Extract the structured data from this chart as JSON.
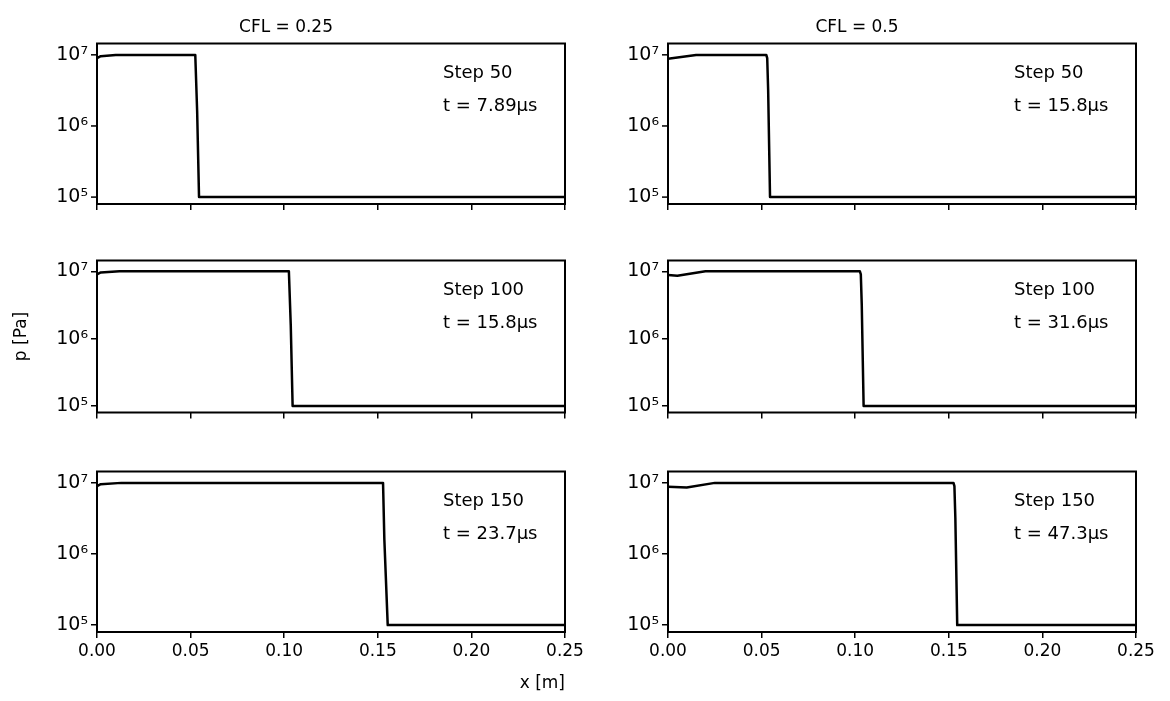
{
  "chart_data": [
    {
      "type": "line",
      "title": "CFL = 0.25",
      "x": [
        0,
        0.002,
        0.01,
        0.0525,
        0.0535,
        0.0545,
        0.25
      ],
      "values": [
        9000000,
        9600000,
        10000000,
        10000000,
        1600000,
        100000,
        100000
      ],
      "color": "#000000",
      "log": "y",
      "xlim": [
        0,
        0.25
      ],
      "ylim": [
        80000,
        14500000
      ],
      "xticks": [
        0,
        0.05,
        0.1,
        0.15,
        0.2,
        0.25
      ],
      "yticks": [
        {
          "value": 100000,
          "label": "10⁵"
        },
        {
          "value": 1000000,
          "label": "10⁶"
        },
        {
          "value": 10000000,
          "label": "10⁷"
        }
      ],
      "tick_labels": "y",
      "annotations": [
        "Step 50",
        "t = 7.89μs"
      ]
    },
    {
      "type": "line",
      "title": "CFL = 0.5",
      "x": [
        0,
        0.015,
        0.0525,
        0.053,
        0.0535,
        0.0545,
        0.25
      ],
      "values": [
        8800000,
        10000000,
        10000000,
        9000000,
        3200000,
        100000,
        100000
      ],
      "color": "#000000",
      "log": "y",
      "xlim": [
        0,
        0.25
      ],
      "ylim": [
        80000,
        14500000
      ],
      "xticks": [
        0,
        0.05,
        0.1,
        0.15,
        0.2,
        0.25
      ],
      "yticks": [
        {
          "value": 100000,
          "label": "10⁵"
        },
        {
          "value": 1000000,
          "label": "10⁶"
        },
        {
          "value": 10000000,
          "label": "10⁷"
        }
      ],
      "tick_labels": "y",
      "annotations": [
        "Step 50",
        "t = 15.8μs"
      ]
    },
    {
      "type": "line",
      "ylabel": "p [Pa]",
      "x": [
        0,
        0.002,
        0.012,
        0.1025,
        0.1035,
        0.1045,
        0.25
      ],
      "values": [
        9000000,
        9600000,
        10000000,
        10000000,
        1600000,
        100000,
        100000
      ],
      "color": "#000000",
      "log": "y",
      "xlim": [
        0,
        0.25
      ],
      "ylim": [
        80000,
        14500000
      ],
      "xticks": [
        0,
        0.05,
        0.1,
        0.15,
        0.2,
        0.25
      ],
      "yticks": [
        {
          "value": 100000,
          "label": "10⁵"
        },
        {
          "value": 1000000,
          "label": "10⁶"
        },
        {
          "value": 10000000,
          "label": "10⁷"
        }
      ],
      "tick_labels": "y",
      "annotations": [
        "Step 100",
        "t = 15.8μs"
      ]
    },
    {
      "type": "line",
      "x": [
        0,
        0.005,
        0.02,
        0.1025,
        0.103,
        0.1035,
        0.1045,
        0.25
      ],
      "values": [
        8800000,
        8600000,
        10000000,
        10000000,
        9000000,
        3200000,
        100000,
        100000
      ],
      "color": "#000000",
      "log": "y",
      "xlim": [
        0,
        0.25
      ],
      "ylim": [
        80000,
        14500000
      ],
      "xticks": [
        0,
        0.05,
        0.1,
        0.15,
        0.2,
        0.25
      ],
      "yticks": [
        {
          "value": 100000,
          "label": "10⁵"
        },
        {
          "value": 1000000,
          "label": "10⁶"
        },
        {
          "value": 10000000,
          "label": "10⁷"
        }
      ],
      "tick_labels": "y",
      "annotations": [
        "Step 100",
        "t = 31.6μs"
      ]
    },
    {
      "type": "line",
      "xlabel": "x [m]",
      "x": [
        0,
        0.002,
        0.013,
        0.1528,
        0.1535,
        0.1553,
        0.25
      ],
      "values": [
        9000000,
        9600000,
        10000000,
        10000000,
        1600000,
        100000,
        100000
      ],
      "color": "#000000",
      "log": "y",
      "xlim": [
        0,
        0.25
      ],
      "ylim": [
        80000,
        14500000
      ],
      "xticks": [
        {
          "value": 0,
          "label": "0.00"
        },
        0.05,
        {
          "value": 0.1,
          "label": "0.10"
        },
        0.15,
        {
          "value": 0.2,
          "label": "0.20"
        },
        0.25
      ],
      "yticks": [
        {
          "value": 100000,
          "label": "10⁵"
        },
        {
          "value": 1000000,
          "label": "10⁶"
        },
        {
          "value": 10000000,
          "label": "10⁷"
        }
      ],
      "annotations": [
        "Step 150",
        "t = 23.7μs"
      ]
    },
    {
      "type": "line",
      "x": [
        0,
        0.01,
        0.025,
        0.1525,
        0.153,
        0.1535,
        0.1545,
        0.25
      ],
      "values": [
        8800000,
        8600000,
        10000000,
        10000000,
        9000000,
        3200000,
        100000,
        100000
      ],
      "color": "#000000",
      "log": "y",
      "xlim": [
        0,
        0.25
      ],
      "ylim": [
        80000,
        14500000
      ],
      "xticks": [
        {
          "value": 0,
          "label": "0.00"
        },
        0.05,
        {
          "value": 0.1,
          "label": "0.10"
        },
        0.15,
        {
          "value": 0.2,
          "label": "0.20"
        },
        0.25
      ],
      "yticks": [
        {
          "value": 100000,
          "label": "10⁵"
        },
        {
          "value": 1000000,
          "label": "10⁶"
        },
        {
          "value": 10000000,
          "label": "10⁷"
        }
      ],
      "annotations": [
        "Step 150",
        "t = 47.3μs"
      ]
    }
  ]
}
